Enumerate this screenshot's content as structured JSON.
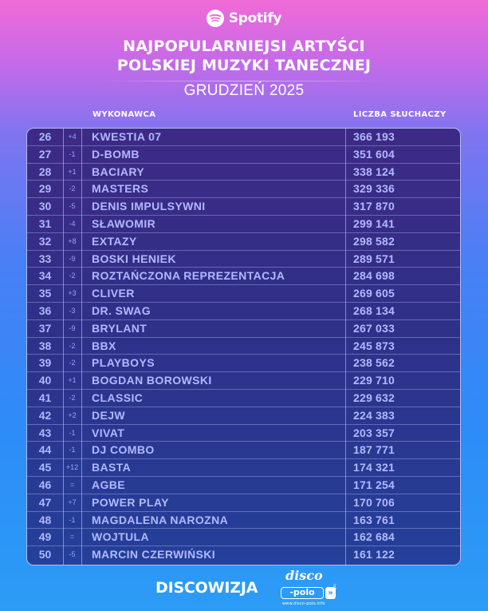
{
  "header": {
    "brand": "Spotify",
    "title_line1": "NAJPOPULARNIEJSI ARTYŚCI",
    "title_line2": "POLSKIEJ MUZYKI TANECZNEJ",
    "subtitle": "GRUDZIEŃ 2025"
  },
  "columns": {
    "artist": "WYKONAWCA",
    "listeners": "LICZBA SŁUCHACZY"
  },
  "rows": [
    {
      "rank": "26",
      "change": "+4",
      "name": "KWESTIA 07",
      "listeners": "366 193"
    },
    {
      "rank": "27",
      "change": "-1",
      "name": "D-BOMB",
      "listeners": "351 604"
    },
    {
      "rank": "28",
      "change": "+1",
      "name": "BACIARY",
      "listeners": "338 124"
    },
    {
      "rank": "29",
      "change": "-2",
      "name": "MASTERS",
      "listeners": "329 336"
    },
    {
      "rank": "30",
      "change": "-5",
      "name": "DENIS IMPULSYWNI",
      "listeners": "317 870"
    },
    {
      "rank": "31",
      "change": "-4",
      "name": "SŁAWOMIR",
      "listeners": "299 141"
    },
    {
      "rank": "32",
      "change": "+8",
      "name": "EXTAZY",
      "listeners": "298 582"
    },
    {
      "rank": "33",
      "change": "-9",
      "name": "BOSKI HENIEK",
      "listeners": "289 571"
    },
    {
      "rank": "34",
      "change": "-2",
      "name": "ROZTAŃCZONA REPREZENTACJA",
      "listeners": "284 698"
    },
    {
      "rank": "35",
      "change": "+3",
      "name": "CLIVER",
      "listeners": "269 605"
    },
    {
      "rank": "36",
      "change": "-3",
      "name": "DR. SWAG",
      "listeners": "268 134"
    },
    {
      "rank": "37",
      "change": "-9",
      "name": "BRYLANT",
      "listeners": "267 033"
    },
    {
      "rank": "38",
      "change": "-2",
      "name": "BBX",
      "listeners": "245 873"
    },
    {
      "rank": "39",
      "change": "-2",
      "name": "PLAYBOYS",
      "listeners": "238 562"
    },
    {
      "rank": "40",
      "change": "+1",
      "name": "BOGDAN BOROWSKI",
      "listeners": "229 710"
    },
    {
      "rank": "41",
      "change": "-2",
      "name": "CLASSIC",
      "listeners": "229 632"
    },
    {
      "rank": "42",
      "change": "+2",
      "name": "DEJW",
      "listeners": "224 383"
    },
    {
      "rank": "43",
      "change": "-1",
      "name": "VIVAT",
      "listeners": "203 357"
    },
    {
      "rank": "44",
      "change": "-1",
      "name": "DJ COMBO",
      "listeners": "187 771"
    },
    {
      "rank": "45",
      "change": "+12",
      "name": "BASTA",
      "listeners": "174 321"
    },
    {
      "rank": "46",
      "change": "=",
      "name": "AGBE",
      "listeners": "171 254"
    },
    {
      "rank": "47",
      "change": "+7",
      "name": "POWER PLAY",
      "listeners": "170 706"
    },
    {
      "rank": "48",
      "change": "-1",
      "name": "MAGDALENA NAROZNA",
      "listeners": "163 761"
    },
    {
      "rank": "49",
      "change": "=",
      "name": "WOJTULA",
      "listeners": "162 684"
    },
    {
      "rank": "50",
      "change": "-5",
      "name": "MARCIN CZERWIŃSKI",
      "listeners": "161 122"
    }
  ],
  "footer": {
    "brand": "DISCOWIZJA",
    "logo_top": "disco",
    "logo_box": "-polo",
    "logo_arrow": "»",
    "logo_url": "www.disco-polo.info",
    "logo_side": "info"
  },
  "colors": {
    "gradient_top": "#f06ad8",
    "gradient_bottom": "#2c9cf6",
    "table_bg": "#2f3088",
    "row_text": "#b1b9ff"
  }
}
